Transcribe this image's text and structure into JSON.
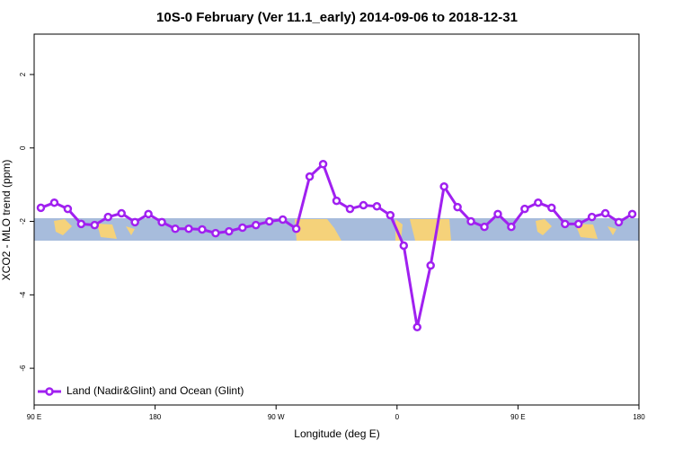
{
  "chart_data": {
    "type": "line",
    "title": "10S-0 February (Ver 11.1_early)   2014-09-06 to 2018-12-31",
    "x_label": "Longitude (deg E)",
    "y_label": "XCO2 - MLO trend (ppm)",
    "x": [
      95,
      105,
      115,
      125,
      135,
      145,
      155,
      165,
      175,
      185,
      195,
      205,
      215,
      225,
      235,
      245,
      255,
      265,
      275,
      285,
      295,
      305,
      315,
      325,
      335,
      345,
      355,
      365,
      375,
      385,
      395,
      405,
      415,
      425,
      435,
      445,
      455,
      465,
      475,
      485,
      495,
      505,
      515,
      525,
      535
    ],
    "series": [
      {
        "name": "Land (Nadir&Glint) and Ocean (Glint)",
        "color": "#a020f0",
        "values": [
          -1.63,
          -1.49,
          -1.66,
          -2.07,
          -2.1,
          -1.88,
          -1.78,
          -2.02,
          -1.8,
          -2.02,
          -2.2,
          -2.2,
          -2.22,
          -2.32,
          -2.27,
          -2.17,
          -2.1,
          -2.0,
          -1.95,
          -2.2,
          -0.78,
          -0.44,
          -1.44,
          -1.66,
          -1.56,
          -1.59,
          -1.83,
          -2.66,
          -4.88,
          -3.2,
          -1.05,
          -1.61,
          -2.0,
          -2.15,
          -1.8,
          -2.15,
          -1.66,
          -1.49,
          -1.63,
          -2.07,
          -2.07,
          -1.88,
          -1.78,
          -2.02,
          -1.8
        ]
      }
    ],
    "xlim": [
      90,
      540
    ],
    "xticks": [
      {
        "value": 90,
        "label": "90 E"
      },
      180,
      {
        "value": 270,
        "label": "90 W"
      },
      {
        "value": 360,
        "label": "0"
      },
      {
        "value": 450,
        "label": "90 E"
      },
      {
        "value": 540,
        "label": "180"
      }
    ],
    "ylim": [
      -7,
      3.1
    ],
    "yticks": [
      -6,
      -4,
      -2,
      0,
      2
    ],
    "legend": "bottom-left"
  }
}
